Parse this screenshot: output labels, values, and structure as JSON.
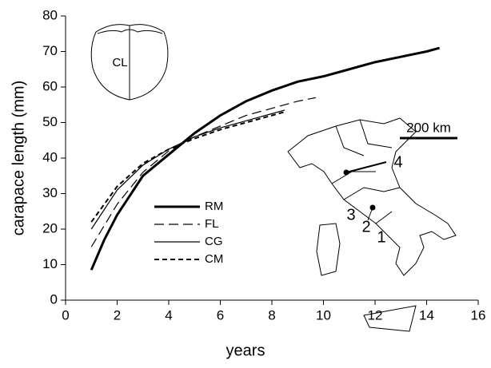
{
  "chart_data": {
    "type": "line",
    "x_label": "years",
    "y_label": "carapace length (mm)",
    "xlim": [
      0,
      16
    ],
    "xticks": [
      0,
      2,
      4,
      6,
      8,
      10,
      12,
      14,
      16
    ],
    "ylim": [
      0,
      80
    ],
    "yticks": [
      0,
      10,
      20,
      30,
      40,
      50,
      60,
      70,
      80
    ],
    "grid": false,
    "legend": "center-left",
    "series": [
      {
        "name": "RM",
        "color": "#000000",
        "width": 3,
        "dash": "none",
        "x": [
          1,
          1.5,
          2,
          3,
          4,
          5,
          6,
          7,
          8,
          9,
          10,
          11,
          12,
          13,
          14,
          14.5
        ],
        "values": [
          8.5,
          17,
          24,
          35,
          41,
          47,
          52,
          56,
          59,
          61.5,
          63,
          65,
          67,
          68.5,
          70,
          71
        ]
      },
      {
        "name": "FL",
        "color": "#000000",
        "width": 1.2,
        "dash": "12 6",
        "x": [
          1,
          2,
          3,
          4,
          5,
          6,
          7,
          8,
          9,
          9.7
        ],
        "values": [
          15,
          27,
          36,
          42,
          46,
          49,
          52,
          54,
          56,
          57
        ]
      },
      {
        "name": "CG",
        "color": "#000000",
        "width": 1.2,
        "dash": "none",
        "x": [
          1,
          2,
          3,
          4,
          5,
          6,
          7,
          8,
          8.5
        ],
        "values": [
          20,
          31,
          38,
          42.5,
          46,
          48.5,
          50.5,
          52.5,
          53.5
        ]
      },
      {
        "name": "CM",
        "color": "#000000",
        "width": 2,
        "dash": "6 4",
        "x": [
          1,
          2,
          3,
          4,
          5,
          6,
          7,
          8,
          8.5
        ],
        "values": [
          22,
          32,
          38.5,
          42.5,
          45.5,
          48,
          50,
          52,
          53
        ]
      }
    ],
    "annotations": {
      "carapace": "CL",
      "scale": "200 km",
      "sites": [
        "1",
        "2",
        "3",
        "4"
      ]
    }
  }
}
